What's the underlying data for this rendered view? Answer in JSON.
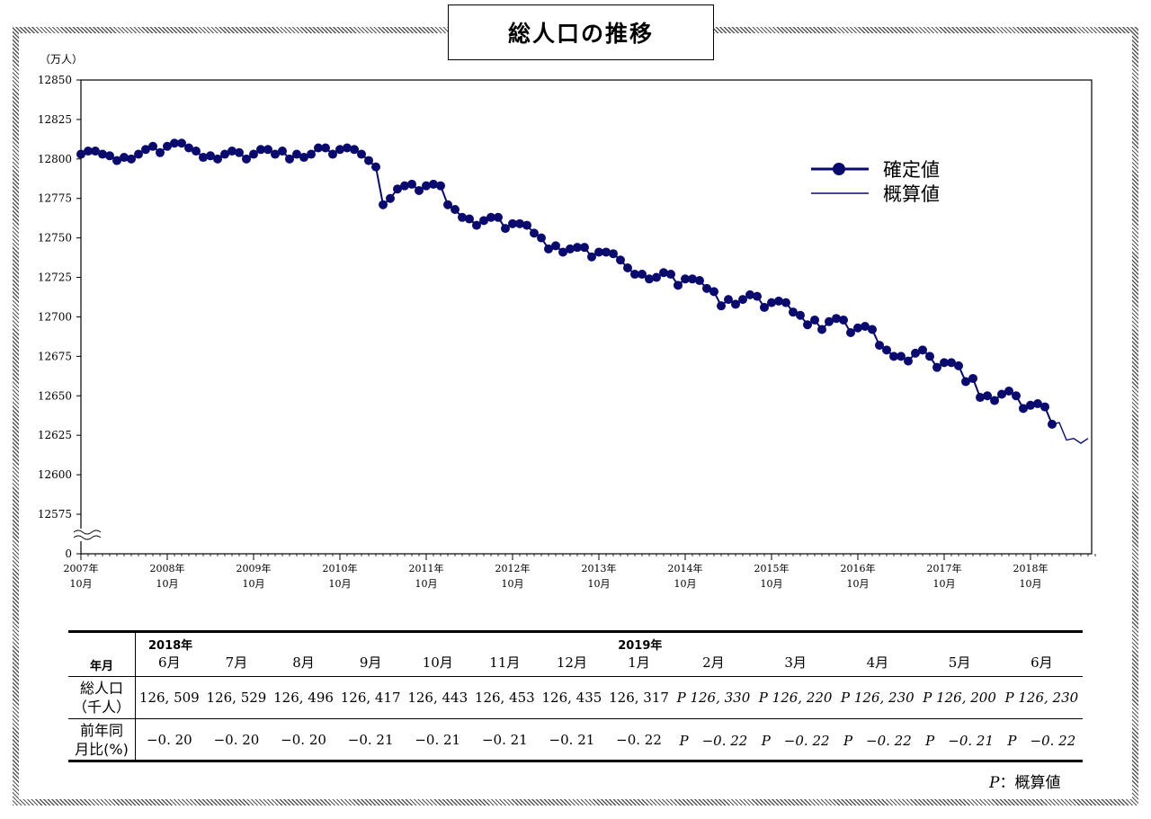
{
  "title": "総人口の推移",
  "chart_data": {
    "type": "line",
    "unit_label": "（万人）",
    "ylim": [
      12575,
      12850
    ],
    "y_ticks": [
      12850,
      12825,
      12800,
      12775,
      12750,
      12725,
      12700,
      12675,
      12650,
      12625,
      12600,
      12575
    ],
    "y_zero_label": "0",
    "axis_break": true,
    "x_ticks": [
      {
        "year": "2007年",
        "month": "10月"
      },
      {
        "year": "2008年",
        "month": "10月"
      },
      {
        "year": "2009年",
        "month": "10月"
      },
      {
        "year": "2010年",
        "month": "10月"
      },
      {
        "year": "2011年",
        "month": "10月"
      },
      {
        "year": "2012年",
        "month": "10月"
      },
      {
        "year": "2013年",
        "month": "10月"
      },
      {
        "year": "2014年",
        "month": "10月"
      },
      {
        "year": "2015年",
        "month": "10月"
      },
      {
        "year": "2016年",
        "month": "10月"
      },
      {
        "year": "2017年",
        "month": "10月"
      },
      {
        "year": "2018年",
        "month": "10月"
      }
    ],
    "legend_position": "top-right",
    "series": [
      {
        "name": "確定値",
        "color": "#0a0a6e",
        "marker": "circle",
        "start": "2007-10",
        "values": [
          12803,
          12805,
          12805,
          12803,
          12802,
          12799,
          12801,
          12800,
          12803,
          12806,
          12808,
          12804,
          12808,
          12810,
          12810,
          12807,
          12805,
          12801,
          12802,
          12800,
          12803,
          12805,
          12804,
          12800,
          12803,
          12806,
          12806,
          12803,
          12805,
          12800,
          12803,
          12801,
          12803,
          12807,
          12807,
          12803,
          12806,
          12807,
          12806,
          12803,
          12799,
          12795,
          12771,
          12775,
          12781,
          12783,
          12784,
          12780,
          12783,
          12784,
          12783,
          12771,
          12768,
          12763,
          12762,
          12758,
          12761,
          12763,
          12763,
          12756,
          12759,
          12759,
          12758,
          12753,
          12750,
          12743,
          12745,
          12741,
          12743,
          12744,
          12744,
          12738,
          12741,
          12741,
          12740,
          12736,
          12731,
          12727,
          12727,
          12724,
          12725,
          12728,
          12727,
          12720,
          12724,
          12724,
          12723,
          12718,
          12716,
          12707,
          12711,
          12708,
          12711,
          12714,
          12713,
          12706,
          12709,
          12710,
          12709,
          12703,
          12701,
          12695,
          12698,
          12692,
          12697,
          12699,
          12698,
          12690,
          12693,
          12694,
          12692,
          12682,
          12679,
          12675,
          12675,
          12672,
          12677,
          12679,
          12675,
          12668,
          12671,
          12671,
          12669,
          12659,
          12661,
          12649,
          12650,
          12647,
          12651,
          12653,
          12650,
          12642,
          12644,
          12645,
          12643,
          12632
        ]
      },
      {
        "name": "概算値",
        "color": "#0a0a6e",
        "marker": "none",
        "start": "2019-01",
        "values": [
          12632,
          12633,
          12622,
          12623,
          12620,
          12623
        ]
      }
    ]
  },
  "table": {
    "header_label": "年月",
    "year_labels": [
      {
        "col": 0,
        "text": "2018年"
      },
      {
        "col": 7,
        "text": "2019年"
      }
    ],
    "months": [
      "6月",
      "7月",
      "8月",
      "9月",
      "10月",
      "11月",
      "12月",
      "1月",
      "2月",
      "3月",
      "4月",
      "5月",
      "6月"
    ],
    "population_label_line1": "総人口",
    "population_label_line2": "（千人）",
    "population_values": [
      "126, 509",
      "126, 529",
      "126, 496",
      "126, 417",
      "126, 443",
      "126, 453",
      "126, 435",
      "126, 317",
      "P 126, 330",
      "P 126, 220",
      "P 126, 230",
      "P 126, 200",
      "P 126, 230"
    ],
    "yoy_label_line1": "前年同",
    "yoy_label_line2": "月比(%)",
    "yoy_values": [
      "−0. 20",
      "−0. 20",
      "−0. 20",
      "−0. 21",
      "−0. 21",
      "−0. 21",
      "−0. 21",
      "−0. 22",
      "P　−0. 22",
      "P　−0. 22",
      "P　−0. 22",
      "P　−0. 21",
      "P　−0. 22"
    ],
    "provisional_from_col": 8
  },
  "note_mark": "P",
  "note_text": "：概算値"
}
